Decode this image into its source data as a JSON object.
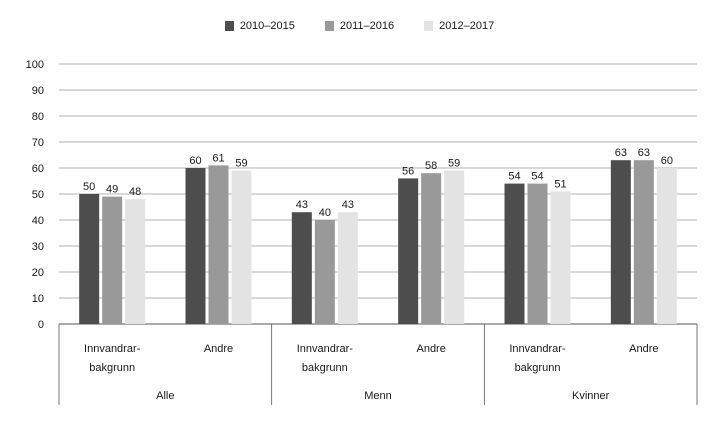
{
  "chart_data": {
    "type": "bar",
    "title": "",
    "xlabel": "",
    "ylabel": "",
    "ylim": [
      0,
      100
    ],
    "yticks": [
      0,
      10,
      20,
      30,
      40,
      50,
      60,
      70,
      80,
      90,
      100
    ],
    "grid": true,
    "legend_position": "top-center",
    "groups": [
      {
        "label": "Alle",
        "categories": [
          "Innvandrar-bakgrunn",
          "Andre"
        ]
      },
      {
        "label": "Menn",
        "categories": [
          "Innvandrar-bakgrunn",
          "Andre"
        ]
      },
      {
        "label": "Kvinner",
        "categories": [
          "Innvandrar-bakgrunn",
          "Andre"
        ]
      }
    ],
    "category_labels": {
      "Innvandrar-bakgrunn": [
        "Innvandrar-",
        "bakgrunn"
      ],
      "Andre": [
        "Andre"
      ]
    },
    "series": [
      {
        "name": "2010–2015",
        "color": "#4d4d4d",
        "values": [
          50,
          60,
          43,
          56,
          54,
          63
        ]
      },
      {
        "name": "2011–2016",
        "color": "#999999",
        "values": [
          49,
          61,
          40,
          58,
          54,
          63
        ]
      },
      {
        "name": "2012–2017",
        "color": "#e3e3e3",
        "values": [
          48,
          59,
          43,
          59,
          51,
          60
        ]
      }
    ]
  }
}
